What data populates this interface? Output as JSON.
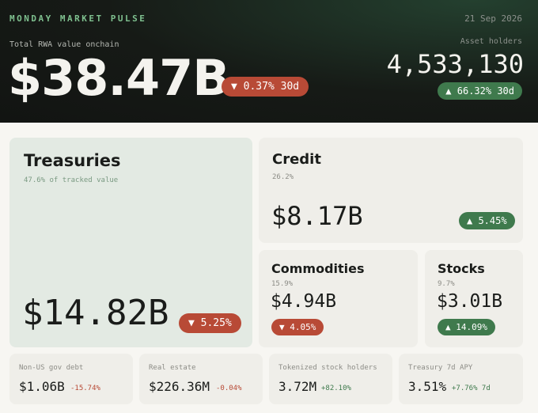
{
  "header": {
    "title": "MONDAY MARKET PULSE",
    "date": "21 Sep 2026",
    "total_label": "Total RWA value onchain",
    "total_value": "$38.47B",
    "total_change": "▼ 0.37% 30d",
    "holders_label": "Asset holders",
    "holders_value": "4,533,130",
    "holders_change": "▲ 66.32% 30d"
  },
  "cards": [
    {
      "name": "Treasuries",
      "share": "47.6% of tracked value",
      "value": "$14.82B",
      "change": "▼ 5.25%"
    },
    {
      "name": "Credit",
      "share": "26.2%",
      "value": "$8.17B",
      "change": "▲ 5.45%"
    },
    {
      "name": "Commodities",
      "share": "15.9%",
      "value": "$4.94B",
      "change": "▼ 4.05%"
    },
    {
      "name": "Stocks",
      "share": "9.7%",
      "value": "$3.01B",
      "change": "▲ 14.09%"
    }
  ],
  "stats": [
    {
      "label": "Non-US gov debt",
      "value": "$1.06B",
      "change": "-15.74%"
    },
    {
      "label": "Real estate",
      "value": "$226.36M",
      "change": "-0.04%"
    },
    {
      "label": "Tokenized stock holders",
      "value": "3.72M",
      "change": "+82.10%"
    },
    {
      "label": "Treasury 7d APY",
      "value": "3.51%",
      "change": "+7.76% 7d"
    }
  ]
}
